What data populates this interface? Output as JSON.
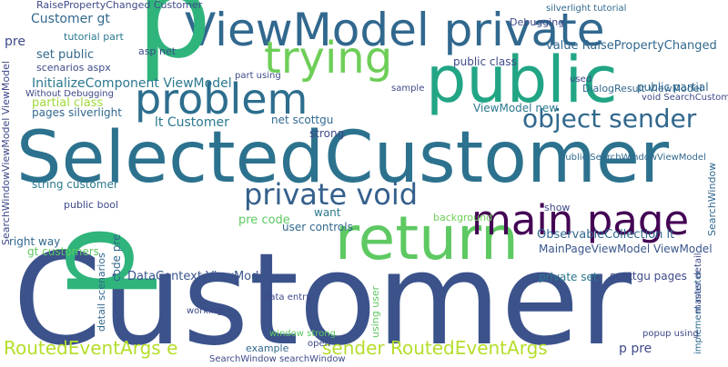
{
  "words": [
    "Customer",
    "SelectedCustomer",
    "ViewModel private",
    "public",
    "p",
    "p",
    "problem",
    "trying",
    "return",
    "main page",
    "private void",
    "object sender",
    "RoutedEventArgs e",
    "sender RoutedEventArgs",
    "Customer gt",
    "RaisePropertyChanged Customer",
    "value RaisePropertyChanged",
    "InitializeComponent ViewModel",
    "lt Customer",
    "string customer",
    "ObservableCollection lt",
    "MainPageViewModel ViewModel",
    "DataContext ViewModel",
    "pre code",
    "public SearchWindowViewModel",
    "DialogResult ViewModel",
    "public partial",
    "public class",
    "ViewModel new",
    "set public",
    "tutorial part",
    "scenarios aspx",
    "partial class",
    "pages silverlight",
    "Without Debugging",
    "net scottgu",
    "user controls",
    "right way",
    "gt customers",
    "public bool",
    "background",
    "private set",
    "scottgu pages",
    "example",
    "SearchWindow searchWindow",
    "p pre",
    "want",
    "show",
    "strong",
    "asp net",
    "part using",
    "silverlight tutorial",
    "Debugging",
    "sample",
    "code pre",
    "detail scenarios",
    "SearchWindowViewModel ViewModel",
    "implement master",
    "SearchWindow",
    "master detail",
    "using user",
    "popup using",
    "working",
    "open",
    "window strong",
    "data entry",
    "used",
    "void SearchCustomer",
    "pre"
  ]
}
